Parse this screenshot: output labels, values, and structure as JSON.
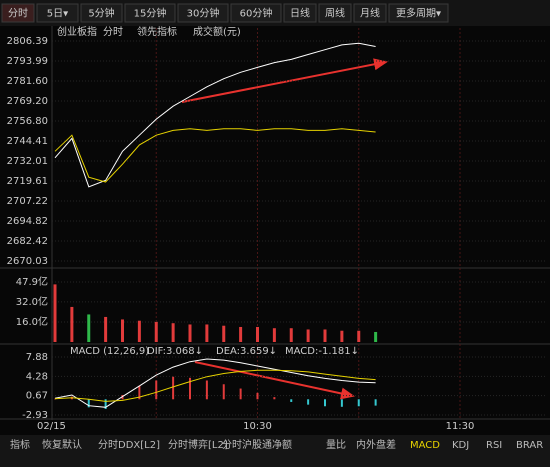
{
  "toolbar": {
    "buttons": [
      "分时",
      "5日▾",
      "5分钟",
      "15分钟",
      "30分钟",
      "60分钟",
      "日线",
      "周线",
      "月线",
      "更多周期▾"
    ]
  },
  "chart_data": [
    {
      "type": "line",
      "title": "创业板指",
      "ylim": [
        2670.03,
        2806.39
      ],
      "yticks": [
        2806.39,
        2793.99,
        {
          "value": 2781.6,
          "label": "2781.60"
        },
        {
          "value": 2769.2,
          "label": "2769.20"
        },
        {
          "value": 2756.8,
          "label": "2756.80"
        },
        2744.41,
        2732.01,
        2719.61,
        2707.22,
        2694.82,
        2682.42,
        2670.03
      ],
      "series": [
        {
          "name": "分时",
          "color": "#ffffff",
          "values": [
            2734,
            2746,
            2716,
            2720,
            2738,
            2748,
            2758,
            2766,
            2772,
            2778,
            2783,
            2787,
            2790,
            2793,
            2795,
            2798,
            2801,
            2804,
            2805,
            2803,
            null,
            null,
            null,
            null,
            null,
            null,
            null,
            null,
            null,
            null
          ]
        },
        {
          "name": "领先指标",
          "color": "#e6d200",
          "values": [
            2738,
            2748,
            2722,
            2719,
            2730,
            2742,
            2748,
            2751,
            2752,
            2751,
            2752,
            2752,
            2751,
            2752,
            2752,
            2751,
            2751,
            2752,
            2751,
            2750,
            null,
            null,
            null,
            null,
            null,
            null,
            null,
            null,
            null,
            null
          ]
        }
      ]
    },
    {
      "type": "bar",
      "title": "成交额(元)",
      "ylim": [
        0,
        47.9
      ],
      "yticks": [
        {
          "value": 47.9,
          "label": "47.9亿"
        },
        {
          "value": 32,
          "label": "32.0亿"
        },
        {
          "value": 16,
          "label": "16.0亿"
        }
      ],
      "up_color": "#e23b3b",
      "down_color": "#2fb84a",
      "values": [
        46,
        28,
        22,
        20,
        18,
        17,
        16,
        15,
        14,
        14,
        13,
        12,
        12,
        11,
        11,
        10,
        10,
        9,
        9,
        8,
        null,
        null,
        null,
        null,
        null,
        null,
        null,
        null,
        null,
        null
      ]
    },
    {
      "type": "macd",
      "title": "MACD (12,26,9)",
      "ylim": [
        -2.93,
        7.88
      ],
      "yticks": [
        7.88,
        4.28,
        0.67,
        -2.93
      ],
      "categories": [
        "02/15",
        null,
        null,
        null,
        null,
        null,
        null,
        null,
        null,
        null,
        null,
        null,
        "10:30",
        null,
        null,
        null,
        null,
        null,
        null,
        null,
        null,
        null,
        null,
        null,
        "11:30",
        null,
        null,
        null,
        null,
        null
      ],
      "series": [
        {
          "name": "DIF:3.068↓",
          "color": "#ffffff",
          "values": [
            0.2,
            0.8,
            -1.2,
            -1.5,
            0.5,
            2.5,
            4.5,
            6.0,
            7.0,
            7.5,
            7.3,
            6.8,
            6.2,
            5.6,
            5.0,
            4.4,
            3.9,
            3.5,
            3.2,
            3.068,
            null,
            null,
            null,
            null,
            null,
            null,
            null,
            null,
            null,
            null
          ]
        },
        {
          "name": "DEA:3.659↓",
          "color": "#e6d200",
          "values": [
            0.1,
            0.3,
            0.0,
            -0.4,
            -0.2,
            0.4,
            1.3,
            2.3,
            3.3,
            4.2,
            4.8,
            5.2,
            5.4,
            5.4,
            5.3,
            5.1,
            4.7,
            4.3,
            3.9,
            3.659,
            null,
            null,
            null,
            null,
            null,
            null,
            null,
            null,
            null,
            null
          ]
        },
        {
          "name": "MACD:-1.181↓",
          "color": "#e6d200",
          "up_color": "#e23b3b",
          "down_color": "#35c8d0",
          "values": [
            0.1,
            0.5,
            -1.5,
            -1.8,
            0.8,
            2.5,
            3.5,
            4.2,
            4.0,
            3.5,
            2.8,
            2.0,
            1.2,
            0.4,
            -0.5,
            -1.0,
            -1.3,
            -1.4,
            -1.3,
            -1.181,
            null,
            null,
            null,
            null,
            null,
            null,
            null,
            null,
            null,
            null
          ]
        }
      ]
    }
  ],
  "indicator_tabs": [
    "指标",
    "恢复默认",
    "分时DDX[L2]",
    "分时博弈[L2]",
    "分时沪股通净额",
    "量比",
    "内外盘差",
    "MACD",
    "KDJ",
    "RSI",
    "BRAR"
  ]
}
